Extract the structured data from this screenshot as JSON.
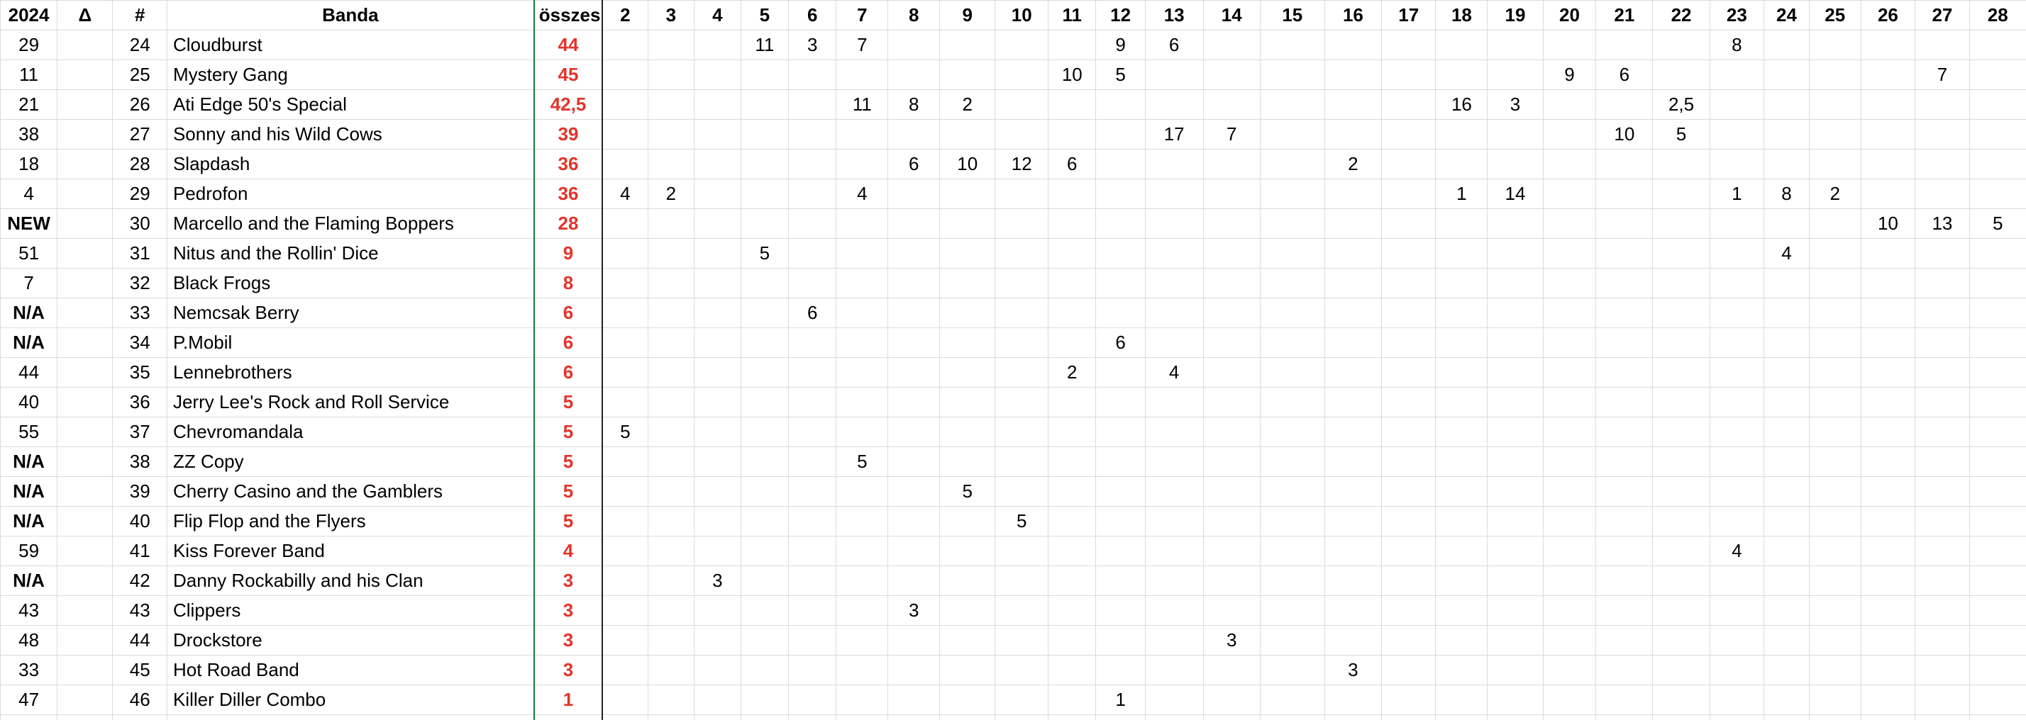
{
  "table": {
    "header": [
      "2024",
      "Δ",
      "#",
      "Banda",
      "összes",
      "2",
      "3",
      "4",
      "5",
      "6",
      "7",
      "8",
      "9",
      "10",
      "11",
      "12",
      "13",
      "14",
      "15",
      "16",
      "17",
      "18",
      "19",
      "20",
      "21",
      "22",
      "23",
      "24",
      "25",
      "26",
      "27",
      "28"
    ],
    "rows": [
      {
        "prev": "29",
        "delta": null,
        "rank": "24",
        "band": "Cloudburst",
        "total": "44",
        "scores": [
          null,
          null,
          null,
          "11",
          "3",
          "7",
          null,
          null,
          null,
          null,
          "9",
          "6",
          null,
          null,
          null,
          null,
          null,
          null,
          null,
          null,
          null,
          "8",
          null,
          null,
          null,
          null,
          null
        ]
      },
      {
        "prev": "11",
        "delta": null,
        "rank": "25",
        "band": "Mystery Gang",
        "total": "45",
        "scores": [
          null,
          null,
          null,
          null,
          null,
          null,
          null,
          null,
          null,
          "10",
          "5",
          null,
          null,
          null,
          null,
          null,
          null,
          null,
          "9",
          "6",
          null,
          null,
          null,
          null,
          null,
          "7",
          null
        ]
      },
      {
        "prev": "21",
        "delta": null,
        "rank": "26",
        "band": "Ati Edge 50's Special",
        "total": "42,5",
        "scores": [
          null,
          null,
          null,
          null,
          null,
          "11",
          "8",
          "2",
          null,
          null,
          null,
          null,
          null,
          null,
          null,
          null,
          "16",
          "3",
          null,
          null,
          "2,5",
          null,
          null,
          null,
          null,
          null,
          null
        ]
      },
      {
        "prev": "38",
        "delta": null,
        "rank": "27",
        "band": "Sonny and his Wild Cows",
        "total": "39",
        "scores": [
          null,
          null,
          null,
          null,
          null,
          null,
          null,
          null,
          null,
          null,
          null,
          "17",
          "7",
          null,
          null,
          null,
          null,
          null,
          null,
          "10",
          "5",
          null,
          null,
          null,
          null,
          null,
          null
        ]
      },
      {
        "prev": "18",
        "delta": null,
        "rank": "28",
        "band": "Slapdash",
        "total": "36",
        "scores": [
          null,
          null,
          null,
          null,
          null,
          null,
          "6",
          "10",
          "12",
          "6",
          null,
          null,
          null,
          null,
          "2",
          null,
          null,
          null,
          null,
          null,
          null,
          null,
          null,
          null,
          null,
          null,
          null
        ]
      },
      {
        "prev": "4",
        "delta": null,
        "rank": "29",
        "band": "Pedrofon",
        "total": "36",
        "scores": [
          "4",
          "2",
          null,
          null,
          null,
          "4",
          null,
          null,
          null,
          null,
          null,
          null,
          null,
          null,
          null,
          null,
          "1",
          "14",
          null,
          null,
          null,
          "1",
          "8",
          "2",
          null,
          null,
          null
        ]
      },
      {
        "prev": "NEW",
        "delta": null,
        "rank": "30",
        "band": "Marcello and the Flaming Boppers",
        "total": "28",
        "scores": [
          null,
          null,
          null,
          null,
          null,
          null,
          null,
          null,
          null,
          null,
          null,
          null,
          null,
          null,
          null,
          null,
          null,
          null,
          null,
          null,
          null,
          null,
          null,
          null,
          "10",
          "13",
          "5"
        ]
      },
      {
        "prev": "51",
        "delta": null,
        "rank": "31",
        "band": "Nitus and the Rollin' Dice",
        "total": "9",
        "scores": [
          null,
          null,
          null,
          "5",
          null,
          null,
          null,
          null,
          null,
          null,
          null,
          null,
          null,
          null,
          null,
          null,
          null,
          null,
          null,
          null,
          null,
          null,
          "4",
          null,
          null,
          null,
          null
        ]
      },
      {
        "prev": "7",
        "delta": null,
        "rank": "32",
        "band": "Black Frogs",
        "total": "8",
        "scores": [
          null,
          null,
          null,
          null,
          null,
          null,
          null,
          null,
          null,
          null,
          null,
          null,
          null,
          null,
          null,
          null,
          null,
          null,
          null,
          null,
          null,
          null,
          null,
          null,
          null,
          null,
          null
        ]
      },
      {
        "prev": "N/A",
        "delta": null,
        "rank": "33",
        "band": "Nemcsak Berry",
        "total": "6",
        "scores": [
          null,
          null,
          null,
          null,
          "6",
          null,
          null,
          null,
          null,
          null,
          null,
          null,
          null,
          null,
          null,
          null,
          null,
          null,
          null,
          null,
          null,
          null,
          null,
          null,
          null,
          null,
          null
        ]
      },
      {
        "prev": "N/A",
        "delta": null,
        "rank": "34",
        "band": "P.Mobil",
        "total": "6",
        "scores": [
          null,
          null,
          null,
          null,
          null,
          null,
          null,
          null,
          null,
          null,
          "6",
          null,
          null,
          null,
          null,
          null,
          null,
          null,
          null,
          null,
          null,
          null,
          null,
          null,
          null,
          null,
          null
        ]
      },
      {
        "prev": "44",
        "delta": null,
        "rank": "35",
        "band": "Lennebrothers",
        "total": "6",
        "scores": [
          null,
          null,
          null,
          null,
          null,
          null,
          null,
          null,
          null,
          "2",
          null,
          "4",
          null,
          null,
          null,
          null,
          null,
          null,
          null,
          null,
          null,
          null,
          null,
          null,
          null,
          null,
          null
        ]
      },
      {
        "prev": "40",
        "delta": null,
        "rank": "36",
        "band": "Jerry Lee's Rock and Roll Service",
        "total": "5",
        "scores": [
          null,
          null,
          null,
          null,
          null,
          null,
          null,
          null,
          null,
          null,
          null,
          null,
          null,
          null,
          null,
          null,
          null,
          null,
          null,
          null,
          null,
          null,
          null,
          null,
          null,
          null,
          null
        ]
      },
      {
        "prev": "55",
        "delta": null,
        "rank": "37",
        "band": "Chevromandala",
        "total": "5",
        "scores": [
          "5",
          null,
          null,
          null,
          null,
          null,
          null,
          null,
          null,
          null,
          null,
          null,
          null,
          null,
          null,
          null,
          null,
          null,
          null,
          null,
          null,
          null,
          null,
          null,
          null,
          null,
          null
        ]
      },
      {
        "prev": "N/A",
        "delta": null,
        "rank": "38",
        "band": "ZZ Copy",
        "total": "5",
        "scores": [
          null,
          null,
          null,
          null,
          null,
          "5",
          null,
          null,
          null,
          null,
          null,
          null,
          null,
          null,
          null,
          null,
          null,
          null,
          null,
          null,
          null,
          null,
          null,
          null,
          null,
          null,
          null
        ]
      },
      {
        "prev": "N/A",
        "delta": null,
        "rank": "39",
        "band": "Cherry Casino and the Gamblers",
        "total": "5",
        "scores": [
          null,
          null,
          null,
          null,
          null,
          null,
          null,
          "5",
          null,
          null,
          null,
          null,
          null,
          null,
          null,
          null,
          null,
          null,
          null,
          null,
          null,
          null,
          null,
          null,
          null,
          null,
          null
        ]
      },
      {
        "prev": "N/A",
        "delta": null,
        "rank": "40",
        "band": "Flip Flop and the Flyers",
        "total": "5",
        "scores": [
          null,
          null,
          null,
          null,
          null,
          null,
          null,
          null,
          "5",
          null,
          null,
          null,
          null,
          null,
          null,
          null,
          null,
          null,
          null,
          null,
          null,
          null,
          null,
          null,
          null,
          null,
          null
        ]
      },
      {
        "prev": "59",
        "delta": null,
        "rank": "41",
        "band": "Kiss Forever Band",
        "total": "4",
        "scores": [
          null,
          null,
          null,
          null,
          null,
          null,
          null,
          null,
          null,
          null,
          null,
          null,
          null,
          null,
          null,
          null,
          null,
          null,
          null,
          null,
          null,
          "4",
          null,
          null,
          null,
          null,
          null
        ]
      },
      {
        "prev": "N/A",
        "delta": null,
        "rank": "42",
        "band": "Danny Rockabilly and his Clan",
        "total": "3",
        "scores": [
          null,
          null,
          "3",
          null,
          null,
          null,
          null,
          null,
          null,
          null,
          null,
          null,
          null,
          null,
          null,
          null,
          null,
          null,
          null,
          null,
          null,
          null,
          null,
          null,
          null,
          null,
          null
        ]
      },
      {
        "prev": "43",
        "delta": null,
        "rank": "43",
        "band": "Clippers",
        "total": "3",
        "scores": [
          null,
          null,
          null,
          null,
          null,
          null,
          "3",
          null,
          null,
          null,
          null,
          null,
          null,
          null,
          null,
          null,
          null,
          null,
          null,
          null,
          null,
          null,
          null,
          null,
          null,
          null,
          null
        ]
      },
      {
        "prev": "48",
        "delta": null,
        "rank": "44",
        "band": "Drockstore",
        "total": "3",
        "scores": [
          null,
          null,
          null,
          null,
          null,
          null,
          null,
          null,
          null,
          null,
          null,
          null,
          "3",
          null,
          null,
          null,
          null,
          null,
          null,
          null,
          null,
          null,
          null,
          null,
          null,
          null,
          null
        ]
      },
      {
        "prev": "33",
        "delta": null,
        "rank": "45",
        "band": "Hot Road Band",
        "total": "3",
        "scores": [
          null,
          null,
          null,
          null,
          null,
          null,
          null,
          null,
          null,
          null,
          null,
          null,
          null,
          null,
          "3",
          null,
          null,
          null,
          null,
          null,
          null,
          null,
          null,
          null,
          null,
          null,
          null
        ]
      },
      {
        "prev": "47",
        "delta": null,
        "rank": "46",
        "band": "Killer Diller Combo",
        "total": "1",
        "scores": [
          null,
          null,
          null,
          null,
          null,
          null,
          null,
          null,
          null,
          null,
          "1",
          null,
          null,
          null,
          null,
          null,
          null,
          null,
          null,
          null,
          null,
          null,
          null,
          null,
          null,
          null,
          null
        ]
      }
    ]
  }
}
